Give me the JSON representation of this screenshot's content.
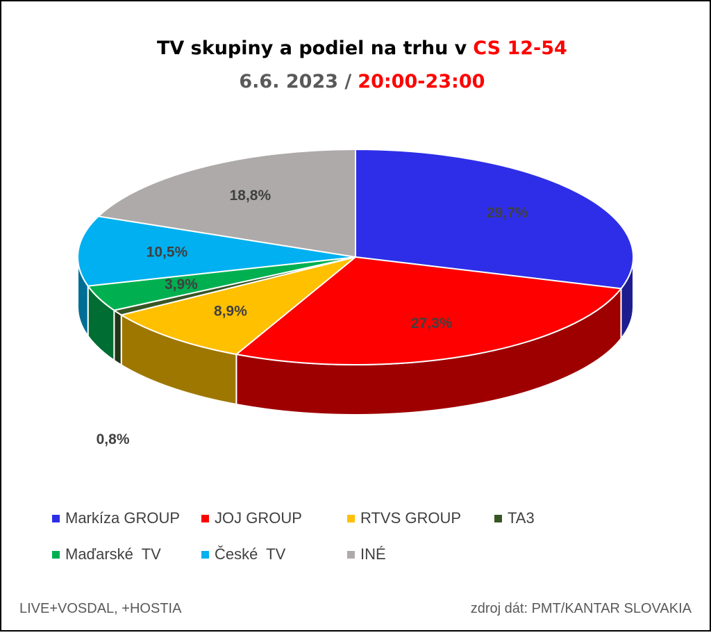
{
  "chart_data": {
    "type": "pie3d",
    "title": [
      "TV skupiny a podiel na trhu v",
      "CS 12-54"
    ],
    "subtitle": [
      "6.6. 2023 /",
      "20:00-23:00"
    ],
    "categories": [
      "Markíza GROUP",
      "JOJ GROUP",
      "RTVS GROUP",
      "TA3",
      "Maďarské  TV",
      "České  TV",
      "INÉ"
    ],
    "values": [
      29.7,
      27.3,
      8.9,
      0.8,
      3.9,
      10.5,
      18.8
    ],
    "value_labels": [
      "29,7%",
      "27,3%",
      "8,9%",
      "0,8%",
      "3,9%",
      "10,5%",
      "18,8%"
    ],
    "colors": [
      "#2e2ee8",
      "#ff0000",
      "#ffc000",
      "#375623",
      "#00b050",
      "#00b0f0",
      "#aeaaaa"
    ],
    "notes": [
      "LIVE+VOSDAL, +HOSTIA",
      "zdroj dát: PMT/KANTAR SLOVAKIA"
    ]
  }
}
